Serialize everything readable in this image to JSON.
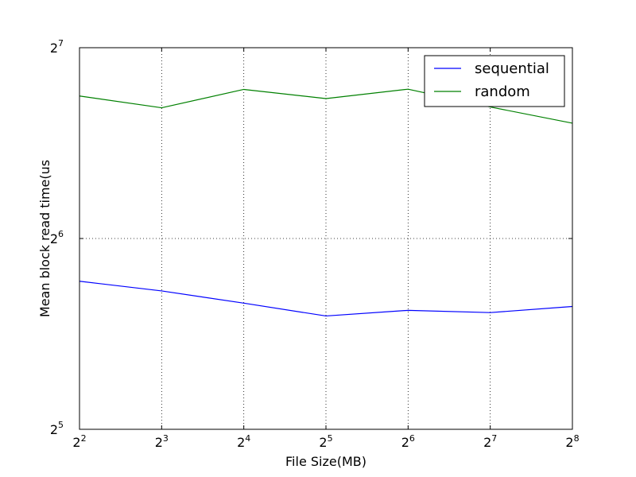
{
  "chart_data": {
    "type": "line",
    "title": "",
    "xlabel": "File Size(MB)",
    "ylabel": "Mean block read time(us",
    "xscale": "log2",
    "yscale": "log2",
    "xlim": [
      4,
      256
    ],
    "ylim": [
      32,
      128
    ],
    "x": [
      4,
      8,
      16,
      32,
      64,
      128,
      256
    ],
    "x_ticks": [
      {
        "value": 4,
        "base": "2",
        "exp": "2"
      },
      {
        "value": 8,
        "base": "2",
        "exp": "3"
      },
      {
        "value": 16,
        "base": "2",
        "exp": "4"
      },
      {
        "value": 32,
        "base": "2",
        "exp": "5"
      },
      {
        "value": 64,
        "base": "2",
        "exp": "6"
      },
      {
        "value": 128,
        "base": "2",
        "exp": "7"
      },
      {
        "value": 256,
        "base": "2",
        "exp": "8"
      }
    ],
    "y_ticks": [
      {
        "value": 32,
        "base": "2",
        "exp": "5"
      },
      {
        "value": 64,
        "base": "2",
        "exp": "6"
      },
      {
        "value": 128,
        "base": "2",
        "exp": "7"
      }
    ],
    "grid": true,
    "legend_position": "top-right",
    "series": [
      {
        "name": "sequential",
        "color": "#0000ff",
        "values": [
          54.8,
          52.9,
          50.6,
          48.3,
          49.3,
          48.9,
          50.0
        ]
      },
      {
        "name": "random",
        "color": "#008000",
        "values": [
          107.4,
          102.9,
          110.0,
          106.4,
          110.1,
          103.2,
          97.3
        ]
      }
    ]
  }
}
